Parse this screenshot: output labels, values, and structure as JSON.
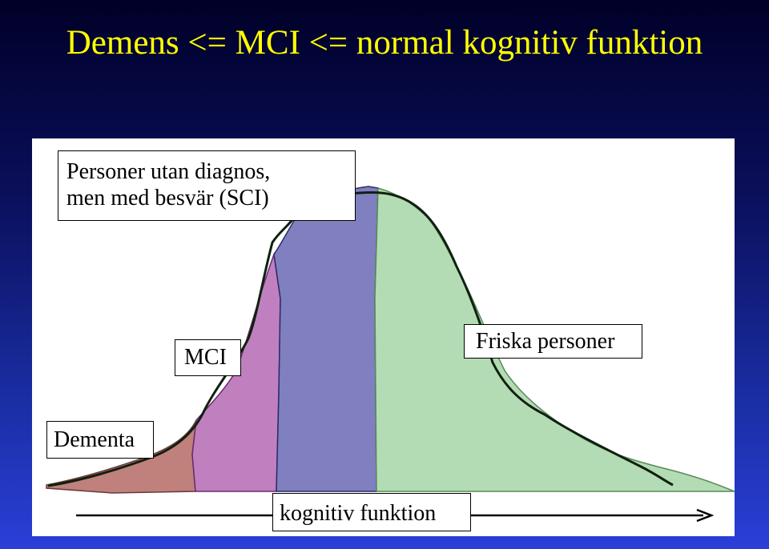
{
  "title": "Demens <= MCI <= normal kognitiv funktion",
  "labels": {
    "sci_line1": "Personer utan diagnos,",
    "sci_line2": "men med besvär (SCI)",
    "mci": "MCI",
    "friska": "Friska personer",
    "dementa": "Dementa",
    "x_axis": "kognitiv funktion"
  },
  "colors": {
    "title": "#ffff00",
    "dementa_fill": "#c0807c",
    "mci_fill": "#c080c0",
    "sci_fill": "#8080c0",
    "friska_fill": "#b4dcb4"
  }
}
